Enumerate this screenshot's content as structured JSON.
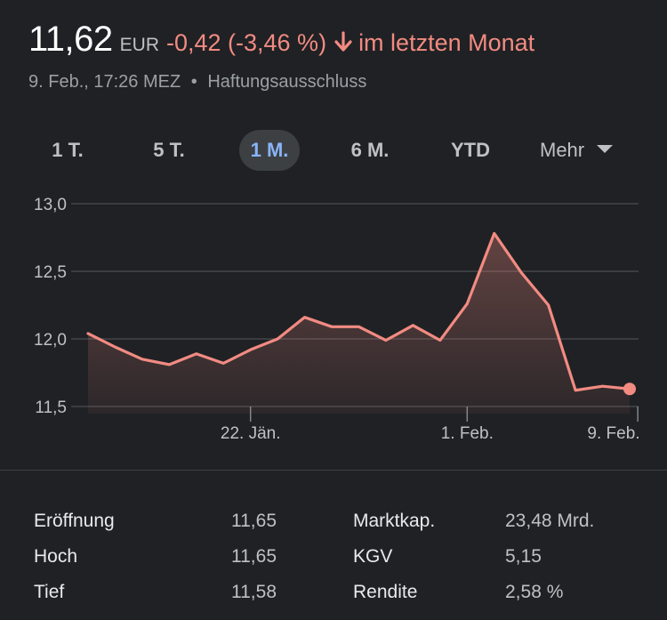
{
  "quote": {
    "price": "11,62",
    "currency": "EUR",
    "change": "-0,42 (-3,46 %)",
    "period": "im letzten Monat",
    "timestamp": "9. Feb., 17:26 MEZ",
    "separator": "•",
    "disclaimer": "Haftungsausschluss",
    "change_color": "#f28b82"
  },
  "tabs": [
    {
      "label": "1 T.",
      "active": false
    },
    {
      "label": "5 T.",
      "active": false
    },
    {
      "label": "1 M.",
      "active": true
    },
    {
      "label": "6 M.",
      "active": false
    },
    {
      "label": "YTD",
      "active": false
    },
    {
      "label": "Mehr",
      "active": false
    }
  ],
  "chart_data": {
    "type": "area",
    "title": "",
    "xlabel": "",
    "ylabel": "",
    "ylim": [
      11.5,
      13.0
    ],
    "y_ticks": [
      "13,0",
      "12,5",
      "12,0",
      "11,5"
    ],
    "y_tick_values": [
      13.0,
      12.5,
      12.0,
      11.5
    ],
    "x_ticks": [
      "22. Jän.",
      "1. Feb.",
      "9. Feb."
    ],
    "x_tick_indices": [
      6,
      14,
      20.3
    ],
    "grid": true,
    "line_color": "#f28b82",
    "series": [
      {
        "values": [
          12.04,
          11.94,
          11.85,
          11.81,
          11.89,
          11.82,
          11.92,
          12.0,
          12.16,
          12.09,
          12.09,
          11.99,
          12.1,
          11.99,
          12.26,
          12.78,
          12.49,
          12.25,
          11.62,
          11.65,
          11.63
        ]
      }
    ]
  },
  "stats": {
    "left": [
      {
        "label": "Eröffnung",
        "value": "11,65"
      },
      {
        "label": "Hoch",
        "value": "11,65"
      },
      {
        "label": "Tief",
        "value": "11,58"
      }
    ],
    "right": [
      {
        "label": "Marktkap.",
        "value": "23,48 Mrd."
      },
      {
        "label": "KGV",
        "value": "5,15"
      },
      {
        "label": "Rendite",
        "value": "2,58 %"
      }
    ]
  }
}
